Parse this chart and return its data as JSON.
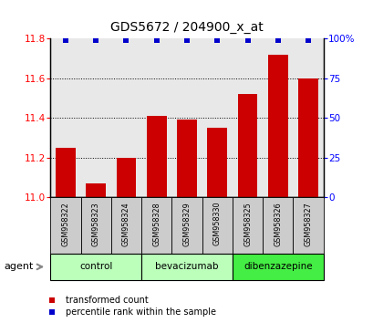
{
  "title": "GDS5672 / 204900_x_at",
  "samples": [
    "GSM958322",
    "GSM958323",
    "GSM958324",
    "GSM958328",
    "GSM958329",
    "GSM958330",
    "GSM958325",
    "GSM958326",
    "GSM958327"
  ],
  "transformed_counts": [
    11.25,
    11.07,
    11.2,
    11.41,
    11.39,
    11.35,
    11.52,
    11.72,
    11.6
  ],
  "percentile_ranks": [
    99,
    99,
    99,
    99,
    99,
    99,
    99,
    99,
    99
  ],
  "groups": [
    {
      "label": "control",
      "indices": [
        0,
        1,
        2
      ],
      "color": "#bbffbb"
    },
    {
      "label": "bevacizumab",
      "indices": [
        3,
        4,
        5
      ],
      "color": "#bbffbb"
    },
    {
      "label": "dibenzazepine",
      "indices": [
        6,
        7,
        8
      ],
      "color": "#44ee44"
    }
  ],
  "ylim_left": [
    11.0,
    11.8
  ],
  "ylim_right": [
    0,
    100
  ],
  "yticks_left": [
    11.0,
    11.2,
    11.4,
    11.6,
    11.8
  ],
  "yticks_right": [
    0,
    25,
    50,
    75,
    100
  ],
  "ytick_labels_right": [
    "0",
    "25",
    "50",
    "75",
    "100%"
  ],
  "bar_color": "#cc0000",
  "dot_color": "#0000cc",
  "bg_plot": "#e8e8e8",
  "bg_sample": "#cccccc",
  "legend_items": [
    "transformed count",
    "percentile rank within the sample"
  ],
  "legend_colors": [
    "#cc0000",
    "#0000cc"
  ],
  "agent_label": "agent"
}
